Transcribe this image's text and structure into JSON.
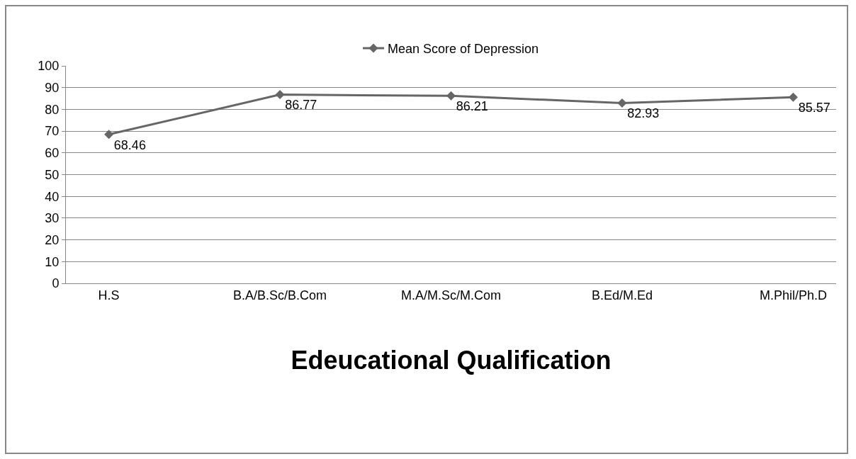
{
  "chart_data": {
    "type": "line",
    "xlabel": "Edeucational Qualification",
    "categories": [
      "H.S",
      "B.A/B.Sc/B.Com",
      "M.A/M.Sc/M.Com",
      "B.Ed/M.Ed",
      "M.Phil/Ph.D"
    ],
    "series": [
      {
        "name": "Mean Score of Depression",
        "color": "#666666",
        "values": [
          68.46,
          86.77,
          86.21,
          82.93,
          85.57
        ]
      }
    ],
    "ylim": [
      0,
      100
    ],
    "yticks": [
      0,
      10,
      20,
      30,
      40,
      50,
      60,
      70,
      80,
      90,
      100
    ],
    "grid": "y",
    "legend": "top",
    "marker": "diamond",
    "line_style": "solid",
    "data_labels": true
  }
}
